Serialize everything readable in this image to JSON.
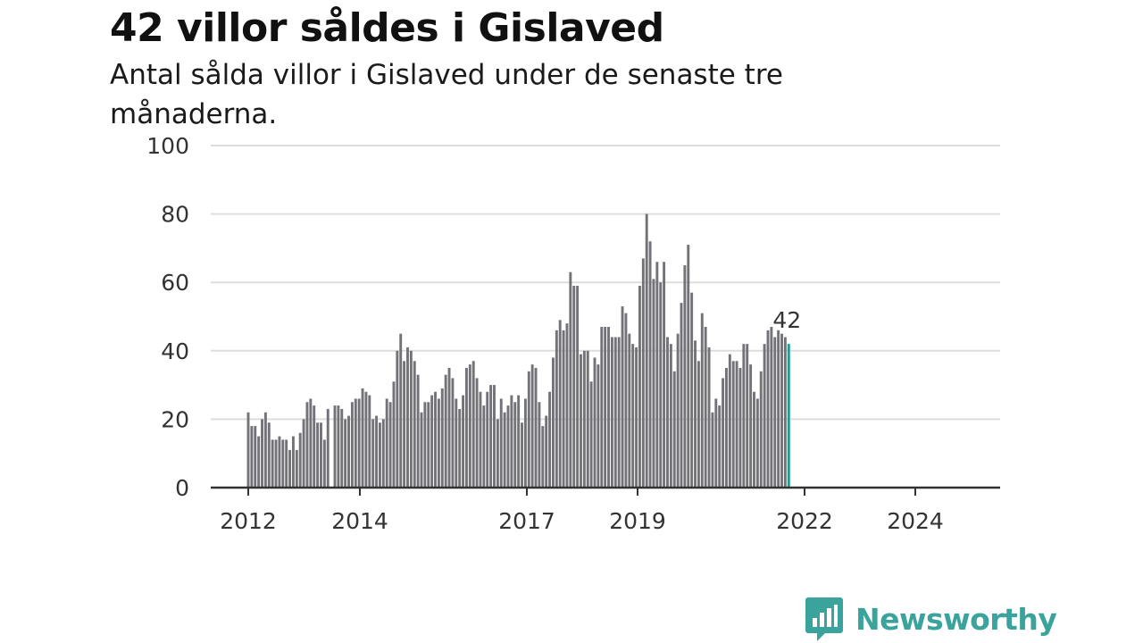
{
  "title": "42 villor såldes i Gislaved",
  "subtitle": "Antal sålda villor i Gislaved under de senaste tre månaderna.",
  "brand": {
    "name": "Newsworthy"
  },
  "colors": {
    "bar": "#737278",
    "highlight": "#1a9e94",
    "grid": "#dddddd",
    "axis": "#333333",
    "brand": "#3aa39b"
  },
  "chart_data": {
    "type": "bar",
    "ylim": [
      0,
      100
    ],
    "y_ticks": [
      0,
      20,
      40,
      60,
      80,
      100
    ],
    "x_tick_labels": [
      "2012",
      "2014",
      "2017",
      "2019",
      "2022",
      "2024"
    ],
    "grid": true,
    "highlight_label": "42",
    "values": [
      22,
      18,
      18,
      15,
      20,
      22,
      19,
      14,
      14,
      15,
      14,
      14,
      11,
      15,
      11,
      16,
      20,
      25,
      26,
      24,
      19,
      19,
      14,
      23,
      0,
      24,
      24,
      23,
      20,
      21,
      25,
      26,
      26,
      29,
      28,
      27,
      20,
      21,
      19,
      20,
      26,
      25,
      31,
      40,
      45,
      37,
      41,
      40,
      37,
      33,
      22,
      25,
      25,
      27,
      28,
      26,
      29,
      33,
      35,
      32,
      26,
      23,
      27,
      35,
      36,
      37,
      32,
      28,
      24,
      28,
      30,
      30,
      20,
      26,
      22,
      24,
      27,
      25,
      27,
      19,
      26,
      34,
      36,
      35,
      25,
      18,
      21,
      28,
      38,
      46,
      49,
      46,
      48,
      63,
      59,
      59,
      39,
      40,
      40,
      31,
      38,
      36,
      47,
      47,
      47,
      44,
      44,
      44,
      53,
      51,
      45,
      42,
      41,
      59,
      67,
      80,
      72,
      61,
      66,
      60,
      66,
      44,
      42,
      34,
      45,
      54,
      65,
      71,
      57,
      43,
      37,
      51,
      47,
      41,
      22,
      26,
      24,
      32,
      35,
      39,
      37,
      37,
      35,
      42,
      42,
      36,
      28,
      26,
      34,
      42,
      46,
      47,
      44,
      46,
      45,
      44,
      42
    ]
  }
}
